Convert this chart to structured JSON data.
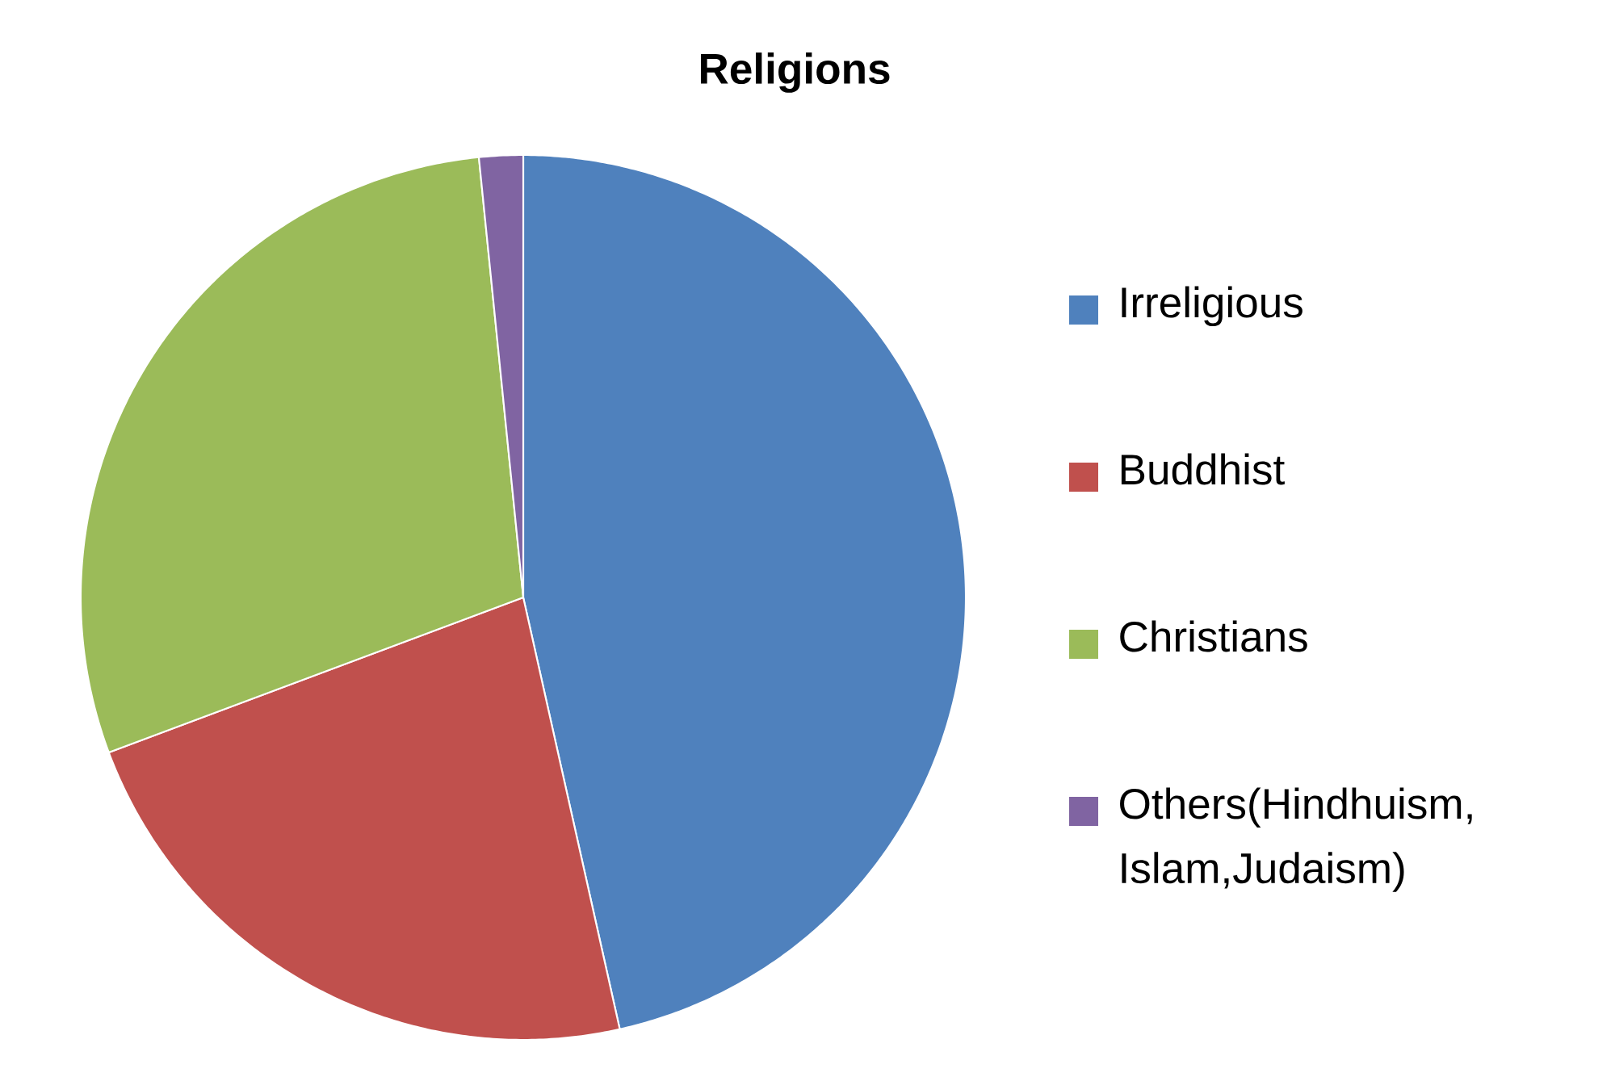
{
  "chart_data": {
    "type": "pie",
    "title": "Religions",
    "categories": [
      "Irreligious",
      "Buddhist",
      "Christians",
      "Others(Hindhuism, Islam,Judaism)"
    ],
    "values": [
      46.5,
      22.8,
      29.1,
      1.6
    ],
    "colors": [
      "#4f81bd",
      "#c0504d",
      "#9bbb59",
      "#8064a2"
    ],
    "legend": "right"
  }
}
